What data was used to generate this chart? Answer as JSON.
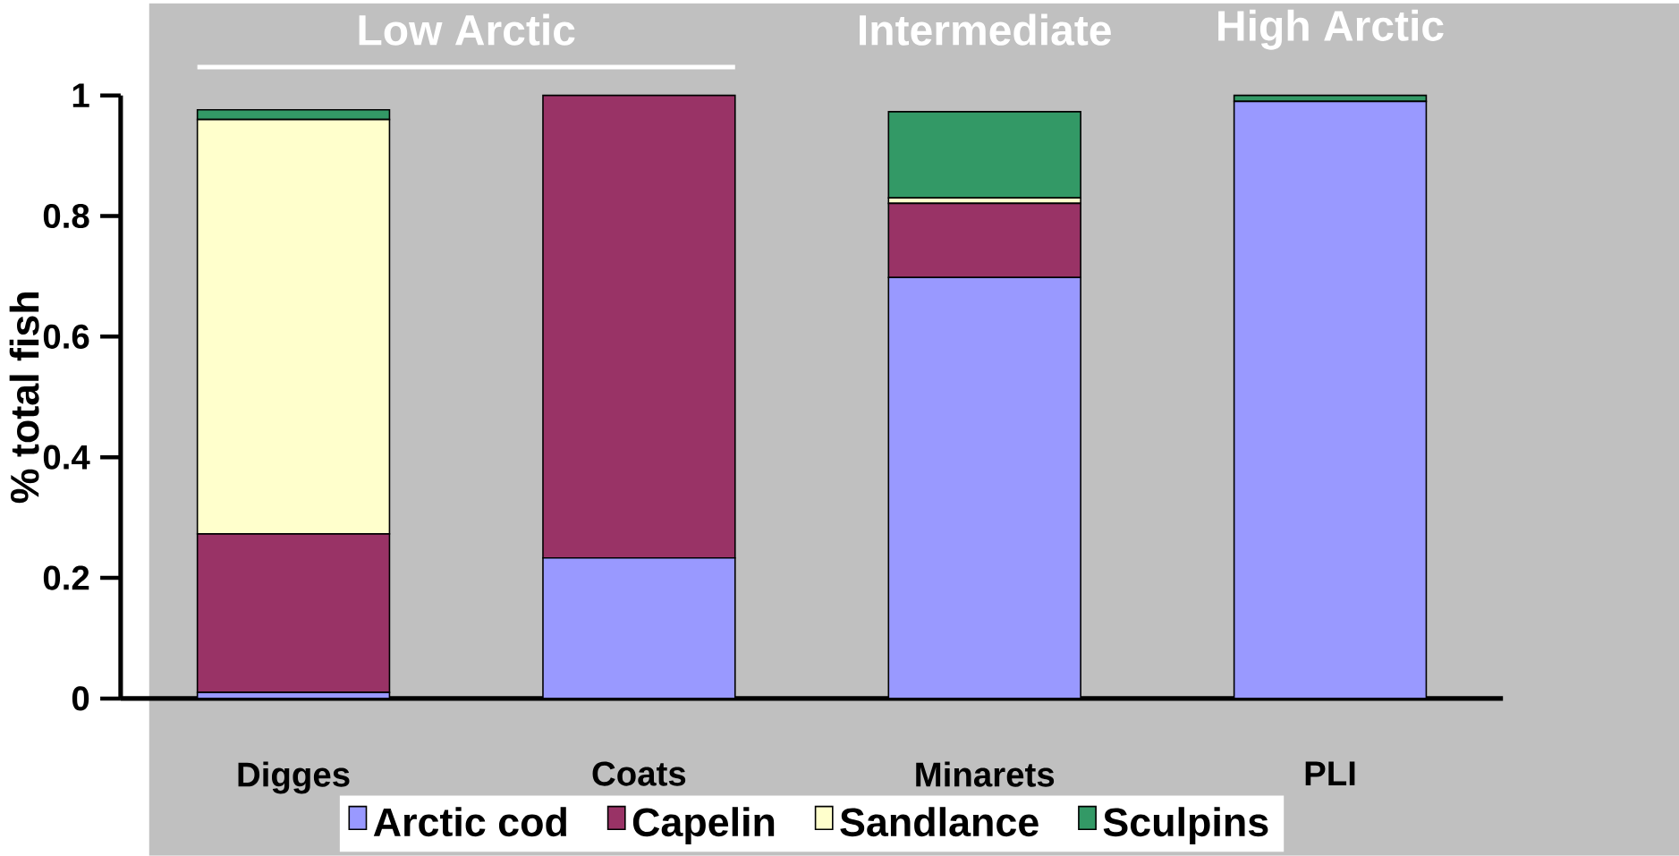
{
  "chart_data": {
    "type": "bar",
    "stacked": true,
    "ylabel": "% total fish",
    "categories": [
      "Digges",
      "Coats",
      "Minarets",
      "PLI"
    ],
    "series": [
      {
        "name": "Arctic cod",
        "color": "#9999ff",
        "values": [
          0.01,
          0.233,
          0.698,
          0.99
        ]
      },
      {
        "name": "Capelin",
        "color": "#993366",
        "values": [
          0.263,
          0.767,
          0.123,
          0
        ]
      },
      {
        "name": "Sandlance",
        "color": "#ffffcc",
        "values": [
          0.687,
          0,
          0.009,
          0
        ]
      },
      {
        "name": "Sculpins",
        "color": "#339966",
        "values": [
          0.016,
          0,
          0.143,
          0.01
        ]
      }
    ],
    "ylim": [
      0,
      1
    ],
    "yticks": [
      0,
      0.2,
      0.4,
      0.6,
      0.8,
      1
    ],
    "grid": false,
    "legend": "bottom",
    "annotations": [
      "Low Arctic",
      "Intermediate",
      "High Arctic"
    ]
  }
}
